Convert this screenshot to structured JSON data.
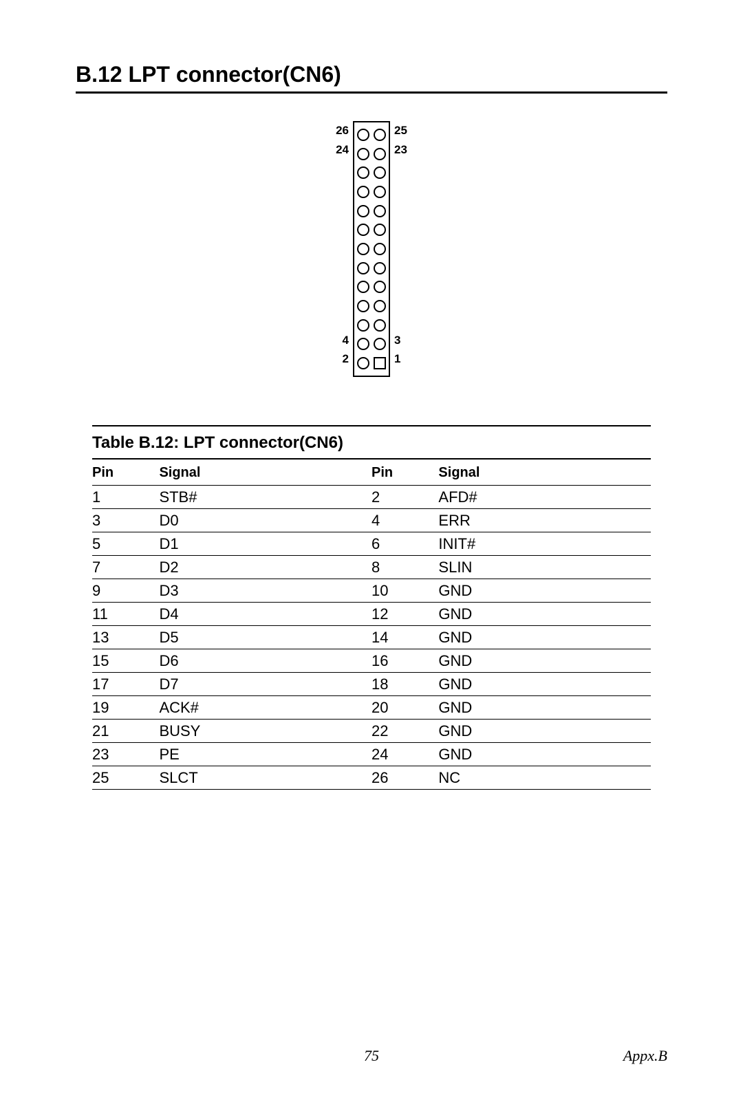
{
  "section": {
    "title": "B.12 LPT connector(CN6)"
  },
  "diagram": {
    "rows": 13,
    "pin1_shape": "square",
    "labels_left": [
      "26",
      "24",
      "",
      "",
      "",
      "",
      "",
      "",
      "",
      "",
      "",
      "4",
      "2"
    ],
    "labels_right": [
      "25",
      "23",
      "",
      "",
      "",
      "",
      "",
      "",
      "",
      "",
      "",
      "3",
      "1"
    ],
    "border_color": "#000000",
    "pin_outline_color": "#000000",
    "background_color": "#ffffff"
  },
  "table": {
    "caption": "Table B.12: LPT connector(CN6)",
    "headers": [
      "Pin",
      "Signal",
      "Pin",
      "Signal"
    ],
    "rows": [
      [
        "1",
        "STB#",
        "2",
        "AFD#"
      ],
      [
        "3",
        "D0",
        "4",
        "ERR"
      ],
      [
        "5",
        "D1",
        "6",
        "INIT#"
      ],
      [
        "7",
        "D2",
        "8",
        "SLIN"
      ],
      [
        "9",
        "D3",
        "10",
        "GND"
      ],
      [
        "11",
        "D4",
        "12",
        "GND"
      ],
      [
        "13",
        "D5",
        "14",
        "GND"
      ],
      [
        "15",
        "D6",
        "16",
        "GND"
      ],
      [
        "17",
        "D7",
        "18",
        "GND"
      ],
      [
        "19",
        "ACK#",
        "20",
        "GND"
      ],
      [
        "21",
        "BUSY",
        "22",
        "GND"
      ],
      [
        "23",
        "PE",
        "24",
        "GND"
      ],
      [
        "25",
        "SLCT",
        "26",
        "NC"
      ]
    ]
  },
  "footer": {
    "page": "75",
    "section": "Appx.B"
  },
  "colors": {
    "text": "#000000",
    "background": "#ffffff",
    "rule": "#000000"
  },
  "typography": {
    "title_fontsize_pt": 24,
    "caption_fontsize_pt": 18,
    "body_fontsize_pt": 16,
    "footer_fontsize_pt": 16,
    "font_family": "Arial"
  }
}
